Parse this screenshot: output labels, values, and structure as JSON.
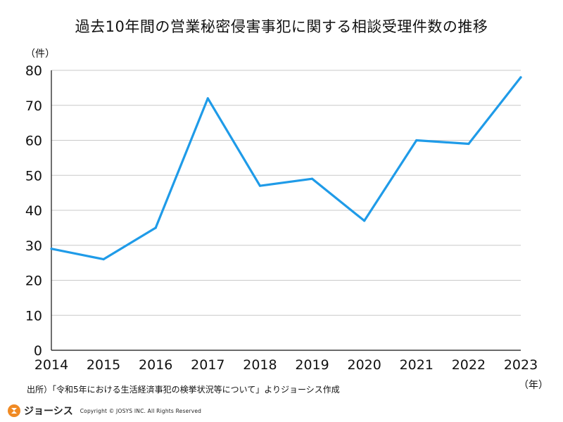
{
  "chart_data": {
    "type": "line",
    "title": "過去10年間の営業秘密侵害事犯に関する相談受理件数の推移",
    "ylabel": "（件）",
    "xlabel": "（年）",
    "categories": [
      "2014",
      "2015",
      "2016",
      "2017",
      "2018",
      "2019",
      "2020",
      "2021",
      "2022",
      "2023"
    ],
    "series": [
      {
        "name": "相談受理件数",
        "values": [
          29,
          26,
          35,
          72,
          47,
          49,
          37,
          60,
          59,
          78
        ],
        "color": "#1f9be8"
      }
    ],
    "ylim": [
      0,
      80
    ],
    "yticks": [
      0,
      10,
      20,
      30,
      40,
      50,
      60,
      70,
      80
    ],
    "grid": true
  },
  "source": "出所）「令和5年における生活経済事犯の検挙状況等について」よりジョーシス作成",
  "footer": {
    "logo_text": "ジョーシス",
    "copyright": "Copyright © JOSYS INC. All Rights Reserved"
  }
}
